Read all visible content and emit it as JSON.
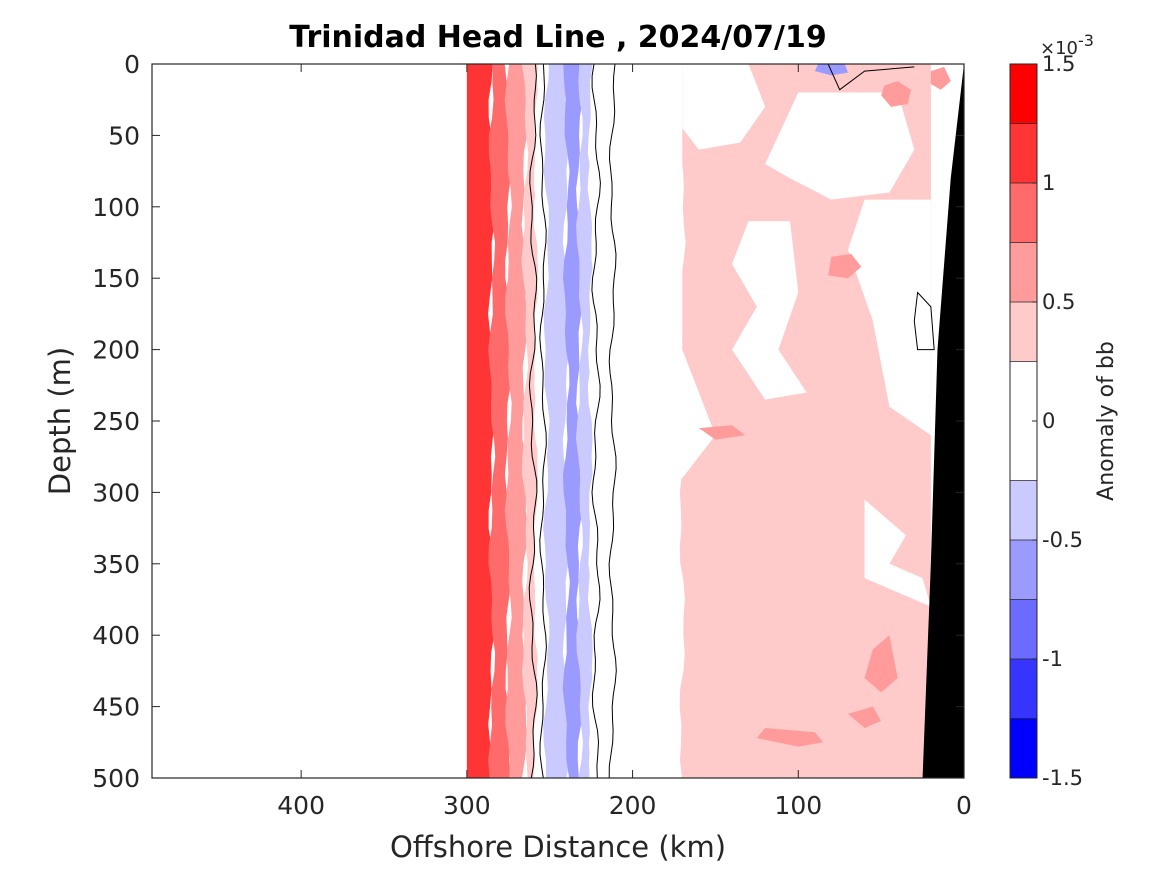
{
  "chart_data": {
    "type": "heatmap",
    "title": "Trinidad Head Line , 2024/07/19",
    "xlabel": "Offshore Distance (km)",
    "ylabel": "Depth (m)",
    "xlim": [
      490,
      0
    ],
    "ylim": [
      0,
      500
    ],
    "x_reversed": true,
    "y_reversed": true,
    "xticks": [
      400,
      300,
      200,
      100,
      0
    ],
    "yticks": [
      0,
      50,
      100,
      150,
      200,
      250,
      300,
      350,
      400,
      450,
      500
    ],
    "data_extent_km": [
      300,
      0
    ],
    "colorbar": {
      "label": "Anomaly of bb",
      "multiplier": "×10",
      "exponent": "-3",
      "range": [
        -1.5,
        1.5
      ],
      "ticks": [
        1.5,
        1,
        0.5,
        0,
        -0.5,
        -1,
        -1.5
      ],
      "levels": [
        1.5,
        1.25,
        1.0,
        0.75,
        0.5,
        0.25,
        -0.25,
        -0.5,
        -0.75,
        -1.0,
        -1.25,
        -1.5
      ],
      "colors": [
        "#ff0000",
        "#ff3535",
        "#ff6b6b",
        "#ff9b9b",
        "#ffcaca",
        "#ffffff",
        "#cacaff",
        "#9b9bff",
        "#6b6bff",
        "#3535ff",
        "#0000ff"
      ]
    },
    "anomaly_bands_x1e3": [
      {
        "distance_km": [
          300,
          285
        ],
        "value": 1.0
      },
      {
        "distance_km": [
          285,
          275
        ],
        "value": 0.75
      },
      {
        "distance_km": [
          275,
          265
        ],
        "value": 0.5
      },
      {
        "distance_km": [
          265,
          258
        ],
        "value": 0.25
      },
      {
        "distance_km": [
          258,
          252
        ],
        "value": 0.0
      },
      {
        "distance_km": [
          252,
          240
        ],
        "value": -0.35
      },
      {
        "distance_km": [
          240,
          232
        ],
        "value": -0.6
      },
      {
        "distance_km": [
          232,
          225
        ],
        "value": -0.35
      },
      {
        "distance_km": [
          225,
          170
        ],
        "value": 0.0
      },
      {
        "distance_km": [
          170,
          20
        ],
        "value": 0.3
      }
    ],
    "bathymetry_color": "#000000"
  }
}
